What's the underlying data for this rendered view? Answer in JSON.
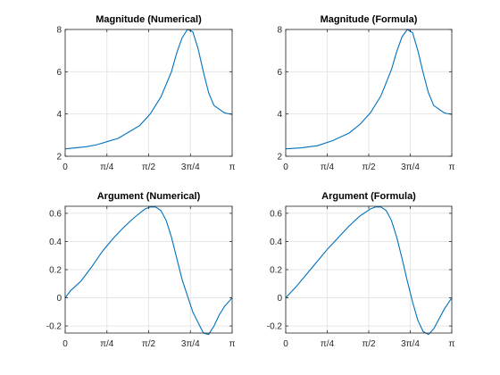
{
  "chart_data": [
    {
      "type": "line",
      "title": "Magnitude (Numerical)",
      "xlim": [
        0,
        3.14159
      ],
      "ylim": [
        2,
        8
      ],
      "grid": true,
      "color": "#0072bd",
      "xticks": [
        0,
        0.7854,
        1.5708,
        2.3562,
        3.14159
      ],
      "xtick_labels": [
        "0",
        "π/4",
        "π/2",
        "3π/4",
        "π"
      ],
      "yticks": [
        2,
        4,
        6,
        8
      ],
      "ytick_labels": [
        "2",
        "4",
        "6",
        "8"
      ],
      "series": [
        {
          "x": [
            0,
            0.2,
            0.4,
            0.6,
            0.8,
            1.0,
            1.2,
            1.4,
            1.6,
            1.8,
            2.0,
            2.1,
            2.2,
            2.3,
            2.4,
            2.5,
            2.6,
            2.7,
            2.8,
            3.0,
            3.14159
          ],
          "values": [
            2.35,
            2.4,
            2.45,
            2.55,
            2.7,
            2.85,
            3.15,
            3.45,
            4.0,
            4.8,
            6.0,
            6.9,
            7.6,
            8.0,
            7.9,
            7.1,
            6.0,
            5.0,
            4.4,
            4.05,
            3.98
          ]
        }
      ]
    },
    {
      "type": "line",
      "title": "Magnitude (Formula)",
      "xlim": [
        0,
        3.14159
      ],
      "ylim": [
        2,
        8
      ],
      "grid": true,
      "color": "#0072bd",
      "xticks": [
        0,
        0.7854,
        1.5708,
        2.3562,
        3.14159
      ],
      "xtick_labels": [
        "0",
        "π/4",
        "π/2",
        "3π/4",
        "π"
      ],
      "yticks": [
        2,
        4,
        6,
        8
      ],
      "ytick_labels": [
        "2",
        "4",
        "6",
        "8"
      ],
      "series": [
        {
          "x": [
            0,
            0.3,
            0.6,
            0.9,
            1.2,
            1.4,
            1.6,
            1.8,
            2.0,
            2.1,
            2.2,
            2.3,
            2.4,
            2.5,
            2.6,
            2.7,
            2.8,
            3.0,
            3.14159
          ],
          "values": [
            2.35,
            2.4,
            2.5,
            2.75,
            3.1,
            3.5,
            4.05,
            4.85,
            6.1,
            6.95,
            7.65,
            8.0,
            7.85,
            7.0,
            5.95,
            5.0,
            4.4,
            4.05,
            3.98
          ]
        }
      ]
    },
    {
      "type": "line",
      "title": "Argument (Numerical)",
      "xlim": [
        0,
        3.14159
      ],
      "ylim": [
        -0.25,
        0.65
      ],
      "grid": true,
      "color": "#0072bd",
      "xticks": [
        0,
        0.7854,
        1.5708,
        2.3562,
        3.14159
      ],
      "xtick_labels": [
        "0",
        "π/4",
        "π/2",
        "3π/4",
        "π"
      ],
      "yticks": [
        -0.2,
        0,
        0.2,
        0.4,
        0.6
      ],
      "ytick_labels": [
        "-0.2",
        "0",
        "0.2",
        "0.4",
        "0.6"
      ],
      "series": [
        {
          "x": [
            0,
            0.1,
            0.3,
            0.5,
            0.7,
            0.9,
            1.1,
            1.3,
            1.5,
            1.6,
            1.7,
            1.8,
            1.9,
            2.0,
            2.1,
            2.2,
            2.4,
            2.6,
            2.7,
            2.8,
            2.9,
            3.0,
            3.14159
          ],
          "values": [
            0.0,
            0.05,
            0.12,
            0.22,
            0.33,
            0.42,
            0.5,
            0.57,
            0.63,
            0.645,
            0.645,
            0.62,
            0.55,
            0.43,
            0.28,
            0.13,
            -0.1,
            -0.25,
            -0.26,
            -0.2,
            -0.12,
            -0.06,
            0.0
          ]
        }
      ]
    },
    {
      "type": "line",
      "title": "Argument (Formula)",
      "xlim": [
        0,
        3.14159
      ],
      "ylim": [
        -0.25,
        0.65
      ],
      "grid": true,
      "color": "#0072bd",
      "xticks": [
        0,
        0.7854,
        1.5708,
        2.3562,
        3.14159
      ],
      "xtick_labels": [
        "0",
        "π/4",
        "π/2",
        "3π/4",
        "π"
      ],
      "yticks": [
        -0.2,
        0,
        0.2,
        0.4,
        0.6
      ],
      "ytick_labels": [
        "-0.2",
        "0",
        "0.2",
        "0.4",
        "0.6"
      ],
      "series": [
        {
          "x": [
            0,
            0.2,
            0.4,
            0.6,
            0.8,
            1.0,
            1.2,
            1.4,
            1.6,
            1.7,
            1.8,
            1.9,
            2.0,
            2.1,
            2.2,
            2.3,
            2.4,
            2.5,
            2.6,
            2.7,
            2.8,
            2.9,
            3.0,
            3.14159
          ],
          "values": [
            0.0,
            0.08,
            0.17,
            0.26,
            0.35,
            0.43,
            0.51,
            0.58,
            0.63,
            0.645,
            0.645,
            0.62,
            0.55,
            0.43,
            0.28,
            0.12,
            -0.03,
            -0.16,
            -0.24,
            -0.26,
            -0.22,
            -0.15,
            -0.08,
            0.0
          ]
        }
      ]
    }
  ]
}
